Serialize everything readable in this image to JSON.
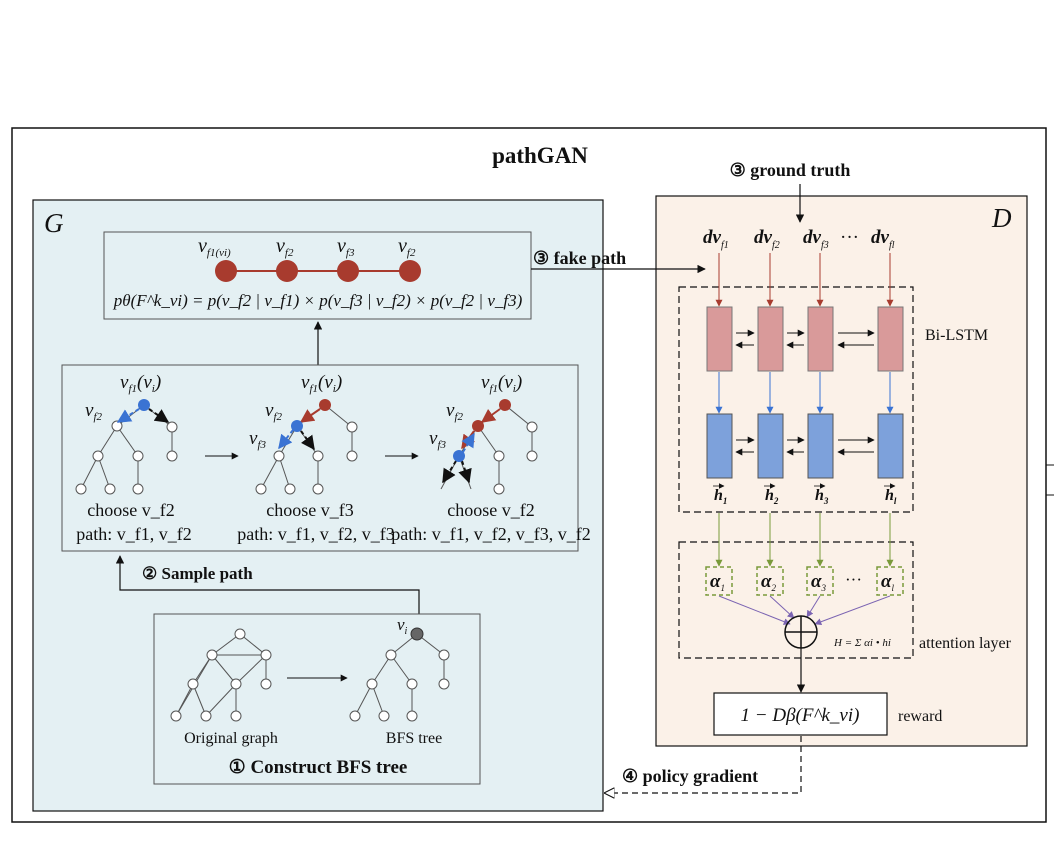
{
  "title": "pathGAN",
  "generator": {
    "label": "G",
    "path_nodes": [
      "v",
      "v",
      "v",
      "v"
    ],
    "path_node_subs": [
      "f1(vi)",
      "f2",
      "f3",
      "f2"
    ],
    "probability_formula": "pθ(F^k_vi) = p(v_f2 | v_f1) × p(v_f3 | v_f2) × p(v_f2 | v_f3)",
    "sample_steps": [
      {
        "choose": "choose v_f2",
        "path": "path: v_f1, v_f2"
      },
      {
        "choose": "choose v_f3",
        "path": "path: v_f1, v_f2, v_f3"
      },
      {
        "choose": "choose v_f2",
        "path": "path: v_f1, v_f2, v_f3, v_f2"
      }
    ],
    "sample_path_label": "② Sample path",
    "bfs": {
      "original_label": "Original graph",
      "tree_label": "BFS tree",
      "root_label": "v",
      "construct_label": "① Construct BFS tree"
    }
  },
  "discriminator": {
    "label": "D",
    "ground_truth_label": "③ ground truth",
    "fake_path_label": "③ fake path",
    "inputs": [
      "dv",
      "dv",
      "dv",
      "···",
      "dv"
    ],
    "input_subs": [
      "f1",
      "f2",
      "f3",
      "",
      "fl"
    ],
    "bilstm_label": "Bi-LSTM",
    "hidden_labels": [
      "h",
      "h",
      "h",
      "h"
    ],
    "hidden_subs": [
      "1",
      "2",
      "3",
      "l"
    ],
    "alpha_labels": [
      "α",
      "α",
      "α",
      "α"
    ],
    "alpha_subs": [
      "1",
      "2",
      "3",
      "l"
    ],
    "alpha_dots": "···",
    "attention_formula": "H = Σ αi • hi",
    "attention_label": "attention layer",
    "reward_formula": "1 − Dβ(F^k_vi)",
    "reward_label": "reward"
  },
  "policy_gradient_label": "④ policy gradient",
  "colors": {
    "generator_bg": "#e4f0f3",
    "discriminator_bg": "#fbf1e8",
    "node_red": "#a83b2e",
    "node_blue": "#3a73d3",
    "forward_cell": "#d99a9a",
    "backward_cell": "#7da1db",
    "alpha_green": "#7a9a3a",
    "attn_purple": "#7b64b2"
  }
}
